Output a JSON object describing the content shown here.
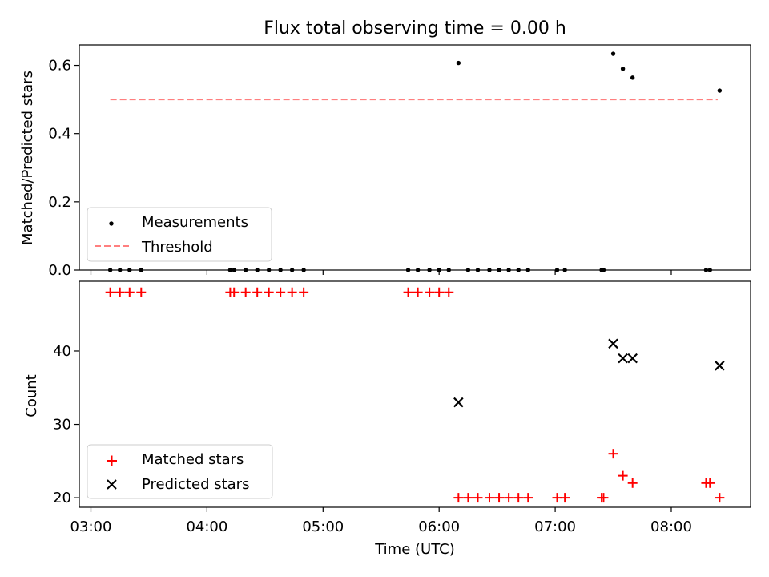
{
  "chart_data": [
    {
      "type": "scatter",
      "title": "Flux total observing time = 0.00 h",
      "xlabel": "",
      "ylabel": "Matched/Predicted stars",
      "xlim": [
        "02:54",
        "08:41"
      ],
      "ylim": [
        0,
        0.66
      ],
      "yticks": [
        0.0,
        0.2,
        0.4,
        0.6
      ],
      "ytick_labels": [
        "0.0",
        "0.2",
        "0.4",
        "0.6"
      ],
      "threshold": {
        "name": "Threshold",
        "value": 0.5,
        "x_range": [
          "03:10",
          "08:24"
        ],
        "color": "#ff7f7f",
        "style": "dashed"
      },
      "legend": {
        "position": "lower-left",
        "entries": [
          {
            "label": "Measurements",
            "marker": "dot",
            "color": "#000000"
          },
          {
            "label": "Threshold",
            "marker": "dashed-line",
            "color": "#ff7f7f"
          }
        ]
      },
      "series": [
        {
          "name": "Measurements",
          "color": "#000000",
          "marker": "dot",
          "points": [
            [
              "03:10",
              0
            ],
            [
              "03:15",
              0
            ],
            [
              "03:20",
              0
            ],
            [
              "03:26",
              0
            ],
            [
              "04:12",
              0
            ],
            [
              "04:14",
              0
            ],
            [
              "04:20",
              0
            ],
            [
              "04:26",
              0
            ],
            [
              "04:32",
              0
            ],
            [
              "04:38",
              0
            ],
            [
              "04:44",
              0
            ],
            [
              "04:50",
              0
            ],
            [
              "05:44",
              0
            ],
            [
              "05:49",
              0
            ],
            [
              "05:55",
              0
            ],
            [
              "06:00",
              0
            ],
            [
              "06:05",
              0
            ],
            [
              "06:10",
              0.607
            ],
            [
              "06:15",
              0
            ],
            [
              "06:20",
              0
            ],
            [
              "06:26",
              0
            ],
            [
              "06:31",
              0
            ],
            [
              "06:36",
              0
            ],
            [
              "06:41",
              0
            ],
            [
              "06:46",
              0
            ],
            [
              "07:01",
              0
            ],
            [
              "07:05",
              0
            ],
            [
              "07:24",
              0
            ],
            [
              "07:25",
              0
            ],
            [
              "07:30",
              0.634
            ],
            [
              "07:35",
              0.59
            ],
            [
              "07:40",
              0.564
            ],
            [
              "08:18",
              0
            ],
            [
              "08:20",
              0
            ],
            [
              "08:25",
              0.526
            ]
          ]
        }
      ]
    },
    {
      "type": "scatter",
      "title": "",
      "xlabel": "Time (UTC)",
      "ylabel": "Count",
      "xlim": [
        "02:54",
        "08:41"
      ],
      "ylim": [
        18.7,
        49.5
      ],
      "xticks": [
        "03:00",
        "04:00",
        "05:00",
        "06:00",
        "07:00",
        "08:00"
      ],
      "xtick_labels": [
        "03:00",
        "04:00",
        "05:00",
        "06:00",
        "07:00",
        "08:00"
      ],
      "yticks": [
        20,
        30,
        40
      ],
      "ytick_labels": [
        "20",
        "30",
        "40"
      ],
      "legend": {
        "position": "lower-left",
        "entries": [
          {
            "label": "Matched stars",
            "marker": "plus",
            "color": "#ff0000"
          },
          {
            "label": "Predicted stars",
            "marker": "x",
            "color": "#000000"
          }
        ]
      },
      "series": [
        {
          "name": "Matched stars",
          "color": "#ff0000",
          "marker": "plus",
          "points": [
            [
              "03:10",
              48
            ],
            [
              "03:15",
              48
            ],
            [
              "03:20",
              48
            ],
            [
              "03:26",
              48
            ],
            [
              "04:12",
              48
            ],
            [
              "04:14",
              48
            ],
            [
              "04:20",
              48
            ],
            [
              "04:26",
              48
            ],
            [
              "04:32",
              48
            ],
            [
              "04:38",
              48
            ],
            [
              "04:44",
              48
            ],
            [
              "04:50",
              48
            ],
            [
              "05:44",
              48
            ],
            [
              "05:49",
              48
            ],
            [
              "05:55",
              48
            ],
            [
              "06:00",
              48
            ],
            [
              "06:05",
              48
            ],
            [
              "06:10",
              20
            ],
            [
              "06:15",
              20
            ],
            [
              "06:20",
              20
            ],
            [
              "06:26",
              20
            ],
            [
              "06:31",
              20
            ],
            [
              "06:36",
              20
            ],
            [
              "06:41",
              20
            ],
            [
              "06:46",
              20
            ],
            [
              "07:01",
              20
            ],
            [
              "07:05",
              20
            ],
            [
              "07:24",
              20
            ],
            [
              "07:25",
              20
            ],
            [
              "07:30",
              26
            ],
            [
              "07:35",
              23
            ],
            [
              "07:40",
              22
            ],
            [
              "08:18",
              22
            ],
            [
              "08:20",
              22
            ],
            [
              "08:25",
              20
            ]
          ]
        },
        {
          "name": "Predicted stars",
          "color": "#000000",
          "marker": "x",
          "points": [
            [
              "06:10",
              33
            ],
            [
              "07:30",
              41
            ],
            [
              "07:35",
              39
            ],
            [
              "07:40",
              39
            ],
            [
              "08:25",
              38
            ]
          ]
        }
      ]
    }
  ]
}
